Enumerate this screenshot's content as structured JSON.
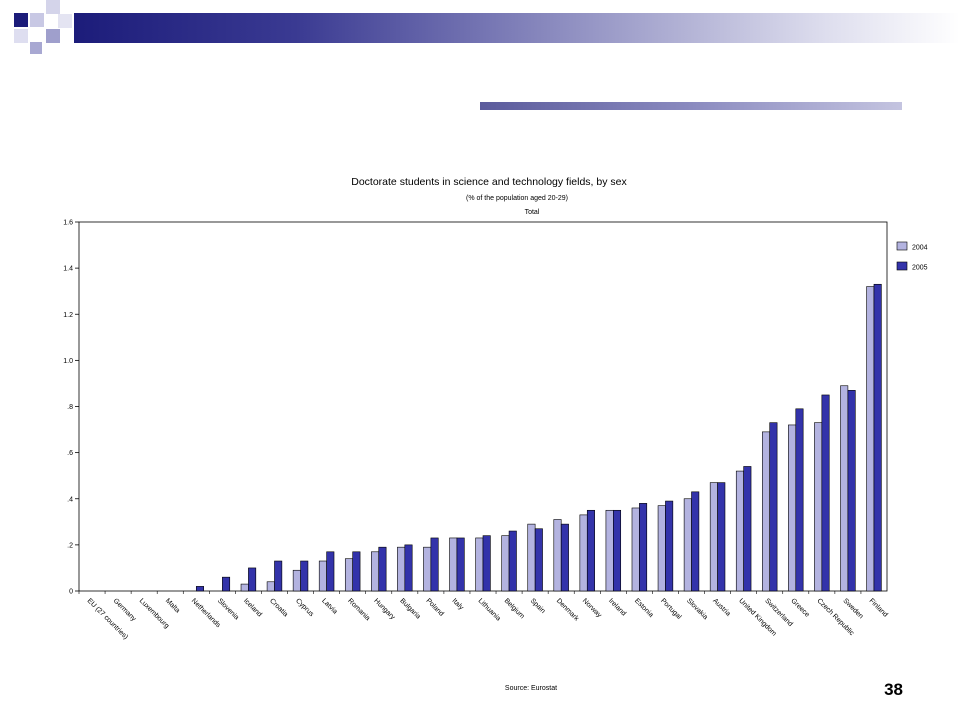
{
  "slide": {
    "number": "38"
  },
  "colors": {
    "series_2004": "#b3b3e0",
    "series_2005": "#3333aa",
    "band_dark": "#1c1c7a"
  },
  "chart_data": {
    "type": "bar",
    "title": "Doctorate students in science and technology fields, by sex",
    "subtitle": "(% of the population aged 20-29)",
    "subtitle2": "Total",
    "source": "Source: Eurostat",
    "xlabel": "",
    "ylabel": "",
    "ylim": [
      0,
      1.6
    ],
    "yticks": [
      0,
      0.2,
      0.4,
      0.6,
      0.8,
      1.0,
      1.2,
      1.4,
      1.6
    ],
    "ytick_labels": [
      "0",
      ".2",
      ".4",
      ".6",
      ".8",
      "1.0",
      "1.2",
      "1.4",
      "1.6"
    ],
    "legend": "right",
    "grid": false,
    "categories": [
      "EU (27 countries)",
      "Germany",
      "Luxembourg",
      "Malta",
      "Netherlands",
      "Slovenia",
      "Iceland",
      "Croatia",
      "Cyprus",
      "Latvia",
      "Romania",
      "Hungary",
      "Bulgaria",
      "Poland",
      "Italy",
      "Lithuania",
      "Belgium",
      "Spain",
      "Denmark",
      "Norway",
      "Ireland",
      "Estonia",
      "Portugal",
      "Slovakia",
      "Austria",
      "United Kingdom",
      "Switzerland",
      "Greece",
      "Czech Republic",
      "Sweden",
      "Finland"
    ],
    "series": [
      {
        "name": "2004",
        "values": [
          null,
          null,
          null,
          null,
          null,
          null,
          0.03,
          0.04,
          0.09,
          0.13,
          0.14,
          0.17,
          0.19,
          0.19,
          0.23,
          0.23,
          0.24,
          0.29,
          0.31,
          0.33,
          0.35,
          0.36,
          0.37,
          0.4,
          0.47,
          0.52,
          0.69,
          0.72,
          0.73,
          0.89,
          1.32
        ]
      },
      {
        "name": "2005",
        "values": [
          null,
          null,
          null,
          null,
          0.02,
          0.06,
          0.1,
          0.13,
          0.13,
          0.17,
          0.17,
          0.19,
          0.2,
          0.23,
          0.23,
          0.24,
          0.26,
          0.27,
          0.29,
          0.35,
          0.35,
          0.38,
          0.39,
          0.43,
          0.47,
          0.54,
          0.73,
          0.79,
          0.85,
          0.87,
          1.33
        ]
      }
    ]
  }
}
